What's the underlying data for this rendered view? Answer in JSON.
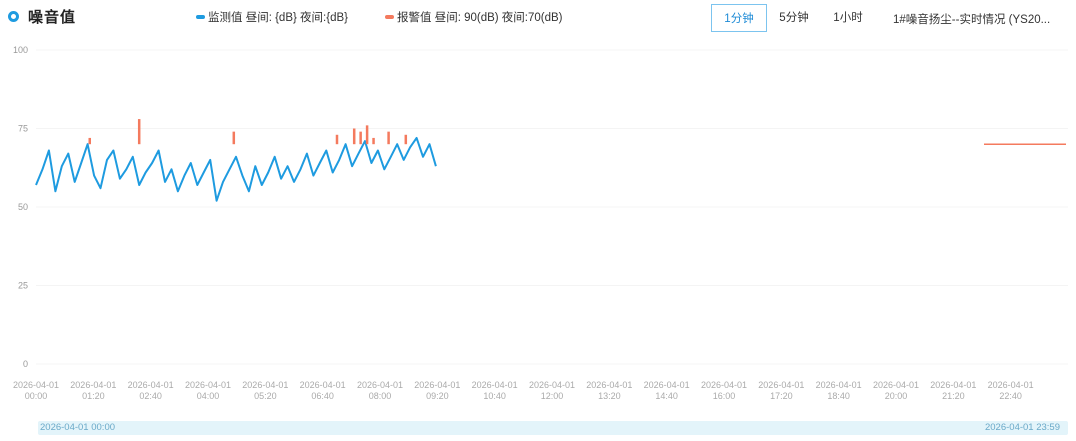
{
  "header": {
    "title": "噪音值",
    "legend": [
      {
        "label": "监测值 昼间: {dB} 夜间:{dB}",
        "color": "#1e9be0"
      },
      {
        "label": "报警值 昼间: 90(dB) 夜间:70(dB)",
        "color": "#f47a5e"
      }
    ],
    "tabs": [
      {
        "label": "1分钟",
        "active": true
      },
      {
        "label": "5分钟",
        "active": false
      },
      {
        "label": "1小时",
        "active": false
      }
    ],
    "station": "1#噪音扬尘--实时情况 (YS20..."
  },
  "zoom": {
    "start_label": "2026-04-01 00:00",
    "end_label": "2026-04-01 23:59"
  },
  "chart_data": {
    "type": "line",
    "ylim": [
      0,
      100
    ],
    "yticks": [
      "0",
      "25",
      "50",
      "75",
      "100"
    ],
    "x_tick_labels": [
      [
        "2026-04-01",
        "00:00"
      ],
      [
        "2026-04-01",
        "01:20"
      ],
      [
        "2026-04-01",
        "02:40"
      ],
      [
        "2026-04-01",
        "04:00"
      ],
      [
        "2026-04-01",
        "05:20"
      ],
      [
        "2026-04-01",
        "06:40"
      ],
      [
        "2026-04-01",
        "08:00"
      ],
      [
        "2026-04-01",
        "09:20"
      ],
      [
        "2026-04-01",
        "10:40"
      ],
      [
        "2026-04-01",
        "12:00"
      ],
      [
        "2026-04-01",
        "13:20"
      ],
      [
        "2026-04-01",
        "14:40"
      ],
      [
        "2026-04-01",
        "16:00"
      ],
      [
        "2026-04-01",
        "17:20"
      ],
      [
        "2026-04-01",
        "18:40"
      ],
      [
        "2026-04-01",
        "20:00"
      ],
      [
        "2026-04-01",
        "21:20"
      ],
      [
        "2026-04-01",
        "22:40"
      ]
    ],
    "series": [
      {
        "name": "监测值",
        "color": "#1e9be0",
        "x_hours": [
          0.0,
          0.15,
          0.3,
          0.45,
          0.6,
          0.75,
          0.9,
          1.05,
          1.2,
          1.35,
          1.5,
          1.65,
          1.8,
          1.95,
          2.1,
          2.25,
          2.4,
          2.55,
          2.7,
          2.85,
          3.0,
          3.15,
          3.3,
          3.45,
          3.6,
          3.75,
          3.9,
          4.05,
          4.2,
          4.35,
          4.5,
          4.65,
          4.8,
          4.95,
          5.1,
          5.25,
          5.4,
          5.55,
          5.7,
          5.85,
          6.0,
          6.15,
          6.3,
          6.45,
          6.6,
          6.75,
          6.9,
          7.05,
          7.2,
          7.35,
          7.5,
          7.65,
          7.8,
          7.95,
          8.1,
          8.25,
          8.4,
          8.55,
          8.7,
          8.85,
          9.0,
          9.15,
          9.3
        ],
        "values": [
          57,
          62,
          68,
          55,
          63,
          67,
          58,
          64,
          70,
          60,
          56,
          65,
          68,
          59,
          62,
          66,
          57,
          61,
          64,
          68,
          58,
          62,
          55,
          60,
          64,
          57,
          61,
          65,
          52,
          58,
          62,
          66,
          60,
          55,
          63,
          57,
          61,
          66,
          59,
          63,
          58,
          62,
          67,
          60,
          64,
          68,
          61,
          65,
          70,
          63,
          67,
          71,
          64,
          68,
          62,
          66,
          70,
          65,
          69,
          72,
          66,
          70,
          63
        ]
      },
      {
        "name": "报警值",
        "color": "#f47a5e",
        "x_hours": [
          1.25,
          2.4,
          4.6,
          7.0,
          7.4,
          7.55,
          7.7,
          7.85,
          8.2,
          8.6
        ],
        "values": [
          72,
          78,
          74,
          73,
          75,
          74,
          76,
          72,
          74,
          73
        ]
      }
    ],
    "threshold_hint_value": 70
  }
}
